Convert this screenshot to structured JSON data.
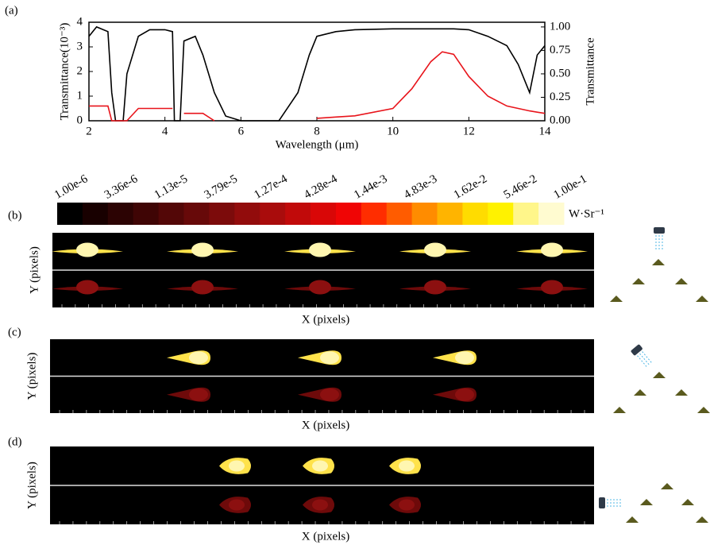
{
  "chart_data": {
    "type": "line",
    "panel_label": "(a)",
    "x_label": "Wavelength (μm)",
    "y_label": "Transmittance(10⁻³)",
    "y2_label": "Transmittance",
    "x": [
      2,
      2.2,
      2.5,
      2.6,
      2.7,
      2.9,
      3.0,
      3.3,
      3.6,
      4.0,
      4.2,
      4.25,
      4.4,
      4.5,
      4.8,
      5.0,
      5.3,
      5.6,
      6,
      7,
      7.5,
      7.8,
      8,
      8.5,
      9,
      10,
      10.5,
      11,
      11.3,
      11.6,
      12,
      12.5,
      13,
      13.3,
      13.6,
      13.8,
      14
    ],
    "series": [
      {
        "color": "#000000",
        "axis": "y2",
        "values": [
          0.9,
          1.0,
          0.95,
          0.3,
          0,
          0,
          0.5,
          0.9,
          0.97,
          0.97,
          0.95,
          0,
          0,
          0.85,
          0.9,
          0.7,
          0.3,
          0.05,
          0,
          0,
          0.3,
          0.7,
          0.9,
          0.95,
          0.97,
          0.98,
          0.98,
          0.98,
          0.98,
          0.98,
          0.97,
          0.9,
          0.8,
          0.6,
          0.3,
          0.7,
          0.8
        ]
      },
      {
        "color": "#e8141b",
        "values": [
          0.6,
          0.6,
          0.6,
          0,
          0,
          0,
          0,
          0.5,
          0.5,
          0.5,
          0.5,
          null,
          null,
          0.3,
          0.3,
          0.3,
          0,
          null,
          null,
          null,
          null,
          null,
          0.1,
          0.15,
          0.2,
          0.5,
          1.3,
          2.4,
          2.8,
          2.7,
          1.8,
          1.0,
          0.6,
          0.5,
          0.4,
          0.35,
          0.3
        ]
      }
    ],
    "xlim": [
      2,
      14
    ],
    "xticks": [
      2,
      4,
      6,
      8,
      10,
      12,
      14
    ],
    "ylim": [
      0,
      4
    ],
    "yticks": [
      0,
      1,
      2,
      3,
      4
    ],
    "y2lim": [
      0,
      1.05
    ],
    "y2ticks": [
      {
        "value": 0,
        "label": "0.00"
      },
      {
        "value": 0.25,
        "label": "0.25"
      },
      {
        "value": 0.5,
        "label": "0.50"
      },
      {
        "value": 0.75,
        "label": "0.75"
      },
      {
        "value": 1,
        "label": "1.00"
      }
    ]
  },
  "colorbar": {
    "labels": [
      "1.00e-6",
      "3.36e-6",
      "1.13e-5",
      "3.79e-5",
      "1.27e-4",
      "4.28e-4",
      "1.44e-3",
      "4.83e-3",
      "1.62e-2",
      "5.46e-2",
      "1.00e-1"
    ],
    "unit": "W·Sr⁻¹",
    "colors": [
      "#000000",
      "#180000",
      "#2c0303",
      "#3f0505",
      "#530707",
      "#670909",
      "#7c0b0b",
      "#920c0c",
      "#a90c0c",
      "#c10a0a",
      "#d90707",
      "#f00505",
      "#ff2d00",
      "#ff5c00",
      "#ff8c00",
      "#ffb400",
      "#ffdc00",
      "#fff200",
      "#fff68a",
      "#fffbd0"
    ]
  },
  "panels": [
    {
      "label": "(b)",
      "y_label": "Y (pixels)",
      "x_label": "X (pixels)"
    },
    {
      "label": "(c)",
      "y_label": "Y (pixels)",
      "x_label": "X (pixels)"
    },
    {
      "label": "(d)",
      "y_label": "Y (pixels)",
      "x_label": "X (pixels)"
    }
  ]
}
